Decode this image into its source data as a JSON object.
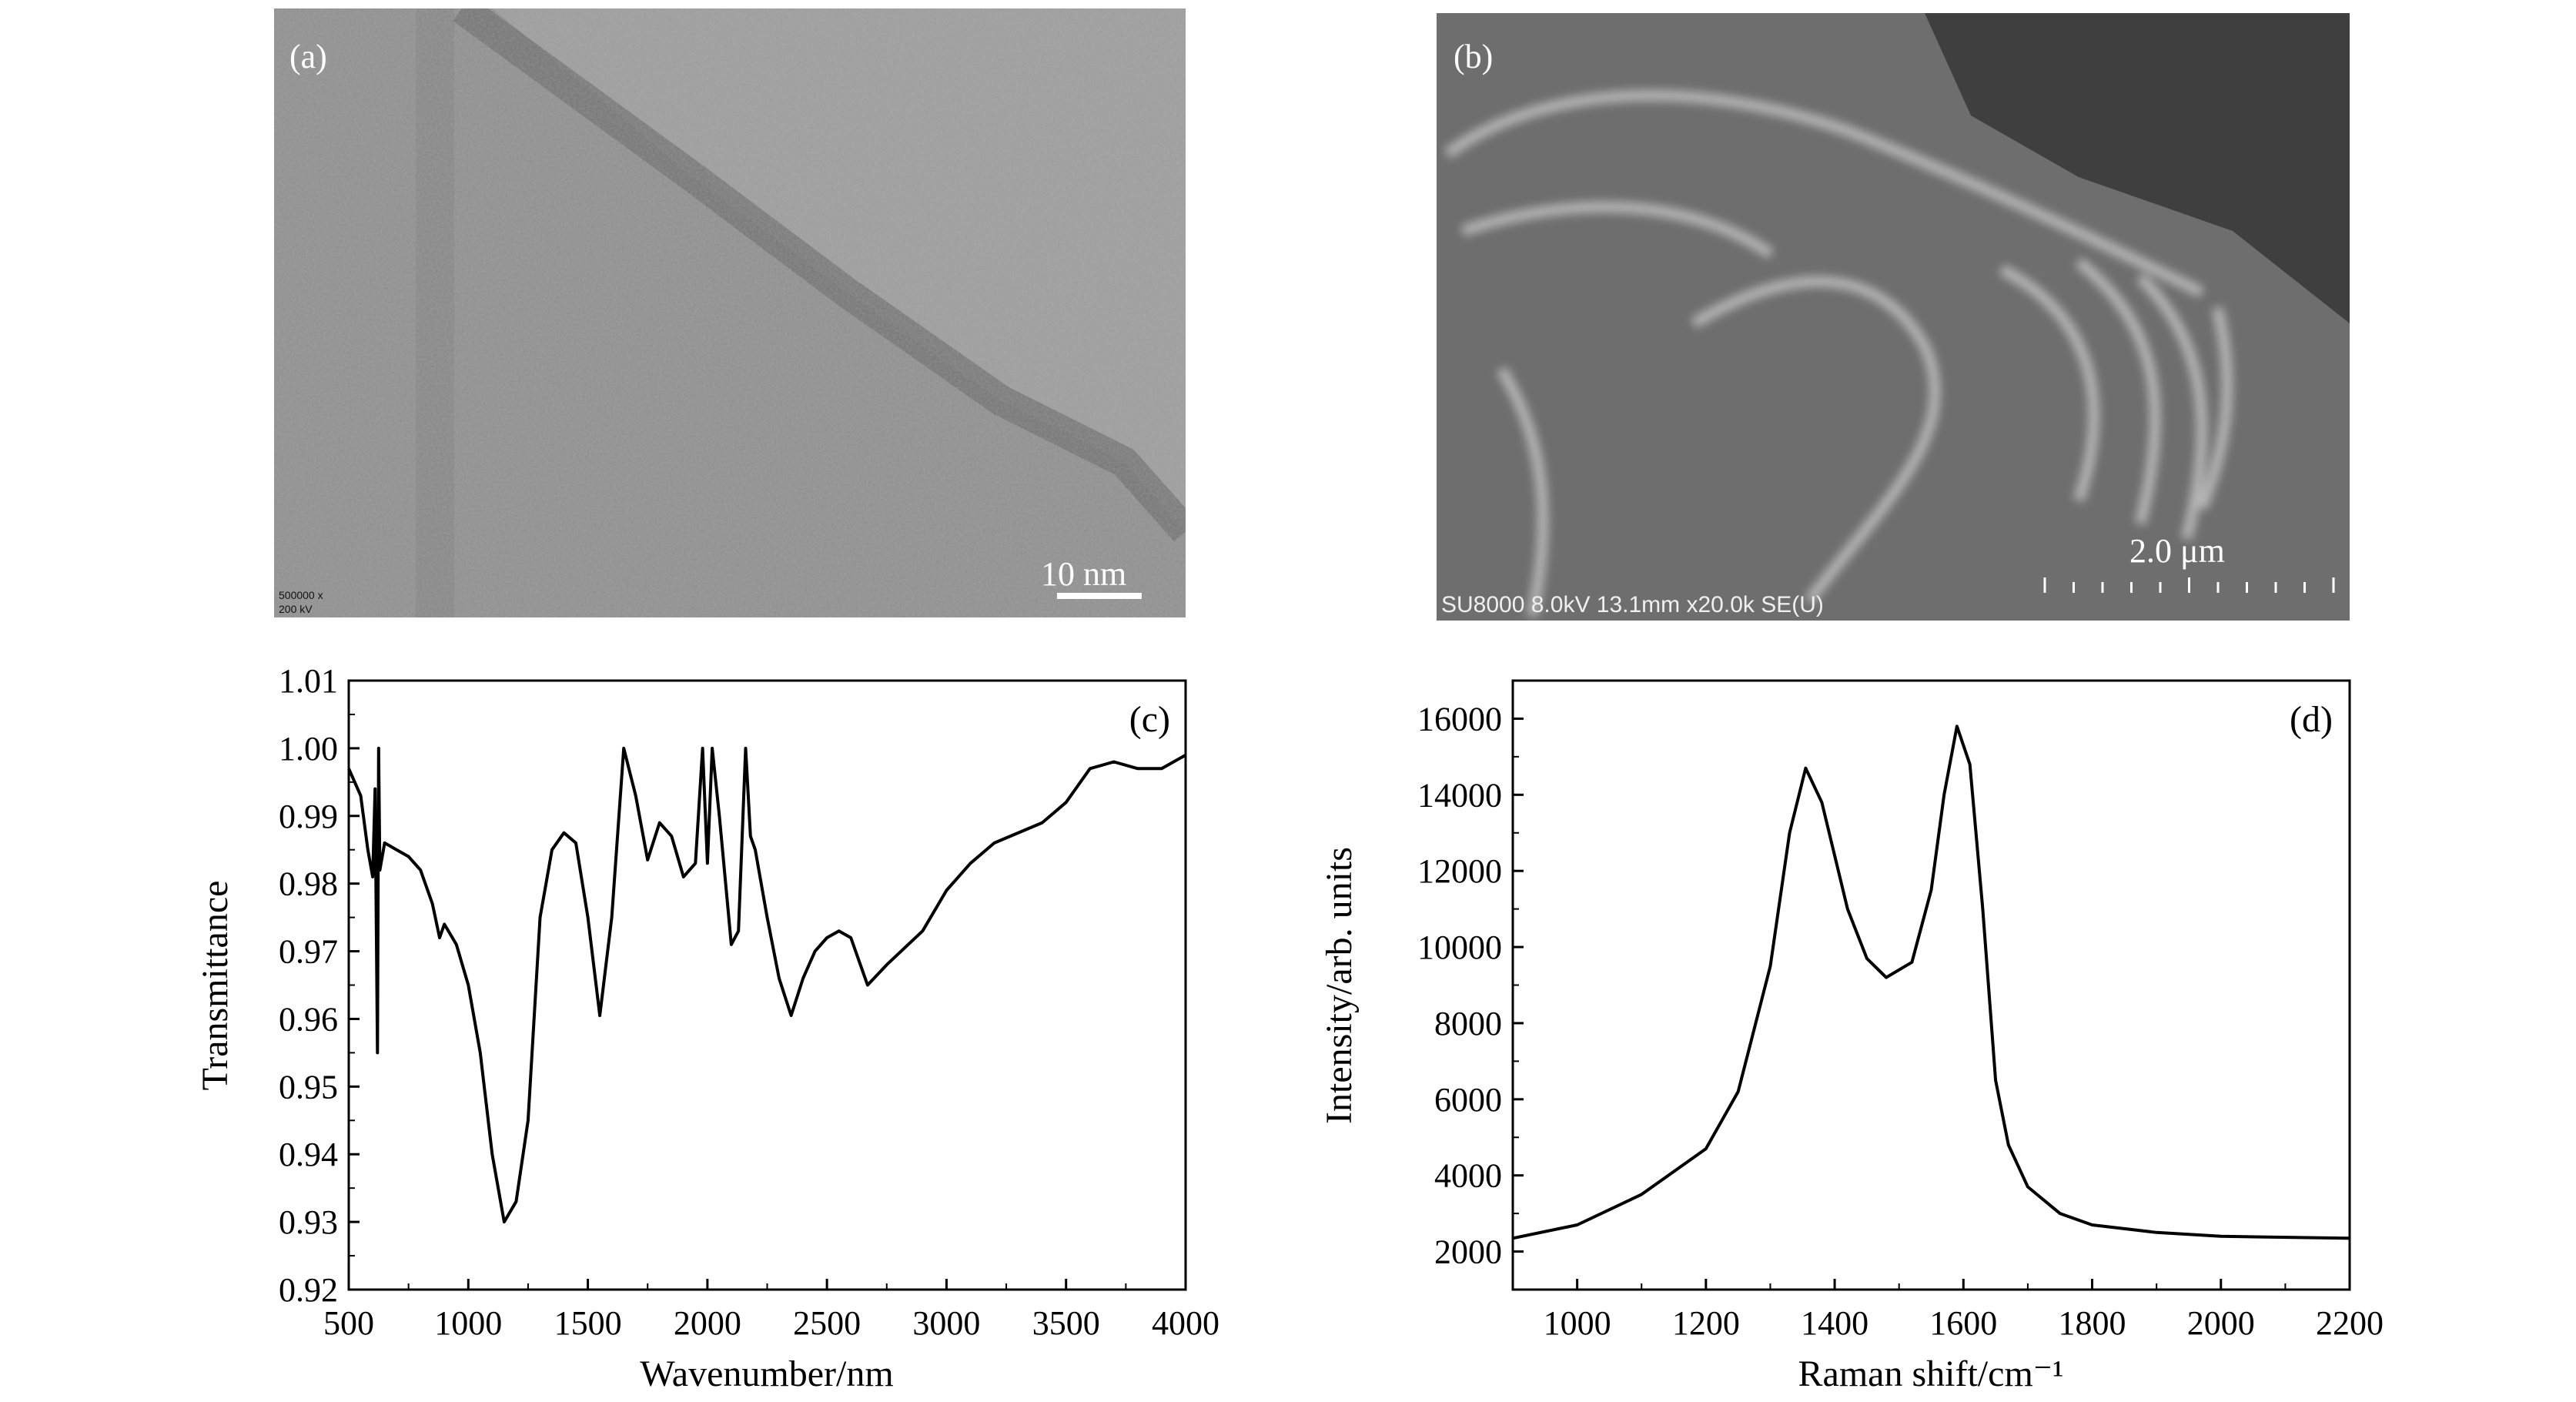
{
  "panels": {
    "a": {
      "label": "(a)",
      "scale_bar": "10 nm",
      "info_line1": "500000 x",
      "info_line2": "200 kV"
    },
    "b": {
      "label": "(b)",
      "scale_bar": "2.0 μm",
      "info": "SU8000 8.0kV 13.1mm x20.0k SE(U)"
    }
  },
  "chart_data": [
    {
      "type": "line",
      "panel_label": "(c)",
      "xlabel": "Wavenumber/nm",
      "ylabel": "Transmittance",
      "xlim": [
        500,
        4000
      ],
      "ylim": [
        0.92,
        1.01
      ],
      "xticks": [
        "500",
        "1000",
        "1500",
        "2000",
        "2500",
        "3000",
        "3500",
        "4000"
      ],
      "yticks": [
        "0.92",
        "0.93",
        "0.94",
        "0.95",
        "0.96",
        "0.97",
        "0.98",
        "0.99",
        "1.00",
        "1.01"
      ],
      "grid": false,
      "line_color": "#000000",
      "x": [
        500,
        550,
        580,
        600,
        610,
        620,
        625,
        630,
        650,
        700,
        750,
        800,
        850,
        880,
        900,
        950,
        1000,
        1050,
        1100,
        1150,
        1200,
        1250,
        1300,
        1350,
        1400,
        1450,
        1500,
        1550,
        1600,
        1650,
        1700,
        1750,
        1800,
        1850,
        1900,
        1950,
        1980,
        2000,
        2020,
        2050,
        2100,
        2130,
        2160,
        2180,
        2200,
        2250,
        2300,
        2350,
        2400,
        2450,
        2500,
        2550,
        2600,
        2670,
        2750,
        2900,
        3000,
        3100,
        3200,
        3400,
        3500,
        3600,
        3700,
        3800,
        3900,
        4000
      ],
      "y": [
        0.997,
        0.993,
        0.985,
        0.981,
        0.994,
        0.955,
        1.0,
        0.982,
        0.986,
        0.985,
        0.984,
        0.982,
        0.977,
        0.972,
        0.974,
        0.971,
        0.965,
        0.955,
        0.94,
        0.93,
        0.933,
        0.945,
        0.975,
        0.985,
        0.9875,
        0.986,
        0.975,
        0.9605,
        0.975,
        1.0,
        0.993,
        0.9835,
        0.989,
        0.987,
        0.981,
        0.983,
        1.0,
        0.983,
        1.0,
        0.99,
        0.971,
        0.973,
        1.0,
        0.987,
        0.985,
        0.975,
        0.966,
        0.9605,
        0.966,
        0.97,
        0.972,
        0.973,
        0.972,
        0.965,
        0.968,
        0.973,
        0.979,
        0.983,
        0.986,
        0.989,
        0.992,
        0.997,
        0.998,
        0.997,
        0.997,
        0.999
      ]
    },
    {
      "type": "line",
      "panel_label": "(d)",
      "xlabel": "Raman shift/cm⁻¹",
      "ylabel": "Intensity/arb. units",
      "xlim": [
        900,
        2200
      ],
      "ylim": [
        1000,
        17000
      ],
      "xticks": [
        "1000",
        "1200",
        "1400",
        "1600",
        "1800",
        "2000",
        "2200"
      ],
      "yticks": [
        "2000",
        "4000",
        "6000",
        "8000",
        "10000",
        "12000",
        "14000",
        "16000"
      ],
      "grid": false,
      "line_color": "#000000",
      "x": [
        900,
        1000,
        1100,
        1200,
        1250,
        1300,
        1330,
        1355,
        1380,
        1420,
        1450,
        1480,
        1520,
        1550,
        1570,
        1590,
        1610,
        1630,
        1650,
        1670,
        1700,
        1750,
        1800,
        1900,
        2000,
        2200
      ],
      "y": [
        2350,
        2700,
        3500,
        4700,
        6200,
        9500,
        13000,
        14700,
        13800,
        11000,
        9700,
        9200,
        9600,
        11500,
        14000,
        15800,
        14800,
        11000,
        6500,
        4800,
        3700,
        3000,
        2700,
        2500,
        2400,
        2350
      ]
    }
  ]
}
